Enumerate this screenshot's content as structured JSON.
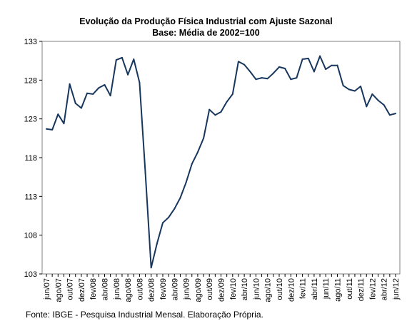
{
  "chart_data": {
    "type": "line",
    "title": "Evolução da Produção Física Industrial com Ajuste Sazonal",
    "subtitle": "Base: Média de 2002=100",
    "xlabel": "",
    "ylabel": "",
    "ylim": [
      103,
      133
    ],
    "yticks": [
      "103",
      "108",
      "113",
      "118",
      "123",
      "128",
      "133"
    ],
    "grid": false,
    "legend": "none",
    "line_color": "#17365d",
    "x_tick_labels": [
      "jun/07",
      "ago/07",
      "out/07",
      "dez/07",
      "fev/08",
      "abr/08",
      "jun/08",
      "ago/08",
      "out/08",
      "dez/08",
      "fev/09",
      "abr/09",
      "jun/09",
      "ago/09",
      "out/09",
      "dez/09",
      "fev/10",
      "abr/10",
      "jun/10",
      "ago/10",
      "out/10",
      "dez/10",
      "fev/11",
      "abr/11",
      "jun/11",
      "ago/11",
      "out/11",
      "dez/11",
      "fev/12",
      "abr/12",
      "jun/12"
    ],
    "x": [
      "jun/07",
      "jul/07",
      "ago/07",
      "set/07",
      "out/07",
      "nov/07",
      "dez/07",
      "jan/08",
      "fev/08",
      "mar/08",
      "abr/08",
      "mai/08",
      "jun/08",
      "jul/08",
      "ago/08",
      "set/08",
      "out/08",
      "nov/08",
      "dez/08",
      "jan/09",
      "fev/09",
      "mar/09",
      "abr/09",
      "mai/09",
      "jun/09",
      "jul/09",
      "ago/09",
      "set/09",
      "out/09",
      "nov/09",
      "dez/09",
      "jan/10",
      "fev/10",
      "mar/10",
      "abr/10",
      "mai/10",
      "jun/10",
      "jul/10",
      "ago/10",
      "set/10",
      "out/10",
      "nov/10",
      "dez/10",
      "jan/11",
      "fev/11",
      "mar/11",
      "abr/11",
      "mai/11",
      "jun/11",
      "jul/11",
      "ago/11",
      "set/11",
      "out/11",
      "nov/11",
      "dez/11",
      "jan/12",
      "fev/12",
      "mar/12",
      "abr/12",
      "mai/12",
      "jun/12"
    ],
    "values": [
      121.7,
      121.6,
      123.6,
      122.4,
      127.5,
      125.0,
      124.4,
      126.3,
      126.2,
      127.0,
      127.4,
      126.0,
      130.6,
      130.9,
      128.7,
      130.7,
      127.7,
      116.0,
      103.8,
      106.9,
      109.6,
      110.3,
      111.4,
      112.8,
      114.8,
      117.2,
      118.7,
      120.5,
      124.2,
      123.5,
      123.9,
      125.2,
      126.2,
      130.4,
      130.0,
      129.1,
      128.1,
      128.3,
      128.2,
      128.9,
      129.7,
      129.5,
      128.1,
      128.3,
      130.7,
      130.8,
      129.1,
      131.1,
      129.4,
      129.9,
      129.9,
      127.3,
      126.8,
      126.6,
      127.2,
      124.6,
      126.2,
      125.4,
      124.8,
      123.5,
      123.7
    ]
  },
  "footer": {
    "source": "Fonte: IBGE - Pesquisa Industrial Mensal. Elaboração Própria."
  }
}
